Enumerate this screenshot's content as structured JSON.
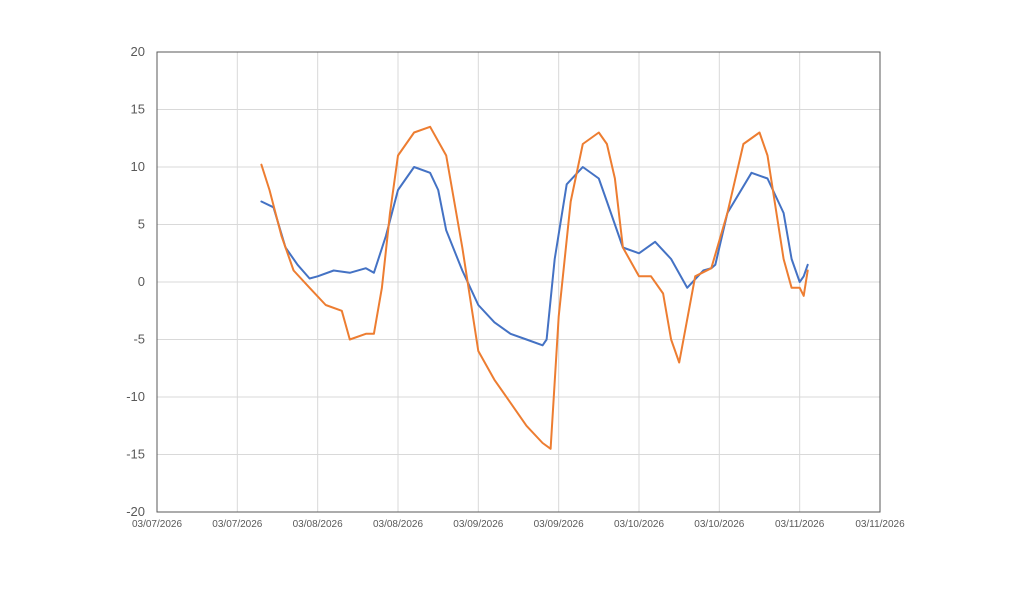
{
  "chart_data": {
    "type": "line",
    "title": "",
    "xlabel": "",
    "ylabel": "",
    "ylim": [
      -20,
      20
    ],
    "yticks": [
      20,
      15,
      10,
      5,
      0,
      -5,
      -10,
      -15,
      -20
    ],
    "x_tick_labels": [
      "03/07/2026",
      "03/07/2026",
      "03/08/2026",
      "03/08/2026",
      "03/09/2026",
      "03/09/2026",
      "03/10/2026",
      "03/10/2026",
      "03/11/2026",
      "03/11/2026"
    ],
    "grid": true,
    "legend": "none",
    "series": [
      {
        "color": "#4472c4",
        "x": [
          1.3,
          1.45,
          1.6,
          1.75,
          1.9,
          2.0,
          2.2,
          2.4,
          2.6,
          2.7,
          2.85,
          3.0,
          3.2,
          3.4,
          3.5,
          3.6,
          3.8,
          3.9,
          4.0,
          4.2,
          4.4,
          4.6,
          4.8,
          4.85,
          4.95,
          5.1,
          5.3,
          5.5,
          5.6,
          5.7,
          5.8,
          6.0,
          6.2,
          6.4,
          6.6,
          6.8,
          6.9,
          6.95,
          7.1,
          7.4,
          7.6,
          7.8,
          7.9,
          8.0,
          8.05,
          8.1
        ],
        "y": [
          7,
          6.5,
          3,
          1.5,
          0.3,
          0.5,
          1.0,
          0.8,
          1.2,
          0.8,
          4.0,
          8.0,
          10.0,
          9.5,
          8.0,
          4.5,
          1.0,
          -0.5,
          -2.0,
          -3.5,
          -4.5,
          -5.0,
          -5.5,
          -5.0,
          2.0,
          8.5,
          10.0,
          9.0,
          7.0,
          5.0,
          3.0,
          2.5,
          3.5,
          2.0,
          -0.5,
          1.0,
          1.2,
          1.5,
          6.0,
          9.5,
          9.0,
          6.0,
          2.0,
          0.0,
          0.5,
          1.5
        ]
      },
      {
        "color": "#ed7d31",
        "x": [
          1.3,
          1.4,
          1.55,
          1.7,
          1.9,
          2.1,
          2.3,
          2.4,
          2.6,
          2.7,
          2.8,
          2.9,
          3.0,
          3.2,
          3.4,
          3.6,
          3.8,
          4.0,
          4.2,
          4.4,
          4.6,
          4.8,
          4.9,
          5.0,
          5.15,
          5.3,
          5.5,
          5.6,
          5.7,
          5.8,
          6.0,
          6.15,
          6.3,
          6.4,
          6.5,
          6.7,
          6.9,
          7.1,
          7.3,
          7.5,
          7.6,
          7.8,
          7.9,
          8.0,
          8.05,
          8.1
        ],
        "y": [
          10.2,
          8.0,
          4.0,
          1.0,
          -0.5,
          -2.0,
          -2.5,
          -5.0,
          -4.5,
          -4.5,
          -0.5,
          6.0,
          11.0,
          13.0,
          13.5,
          11.0,
          3.0,
          -6.0,
          -8.5,
          -10.5,
          -12.5,
          -14.0,
          -14.5,
          -3.0,
          7.0,
          12.0,
          13.0,
          12.0,
          9.0,
          3.0,
          0.5,
          0.5,
          -1.0,
          -5.0,
          -7.0,
          0.5,
          1.2,
          6.0,
          12.0,
          13.0,
          11.0,
          2.0,
          -0.5,
          -0.5,
          -1.2,
          1.0
        ]
      }
    ]
  }
}
